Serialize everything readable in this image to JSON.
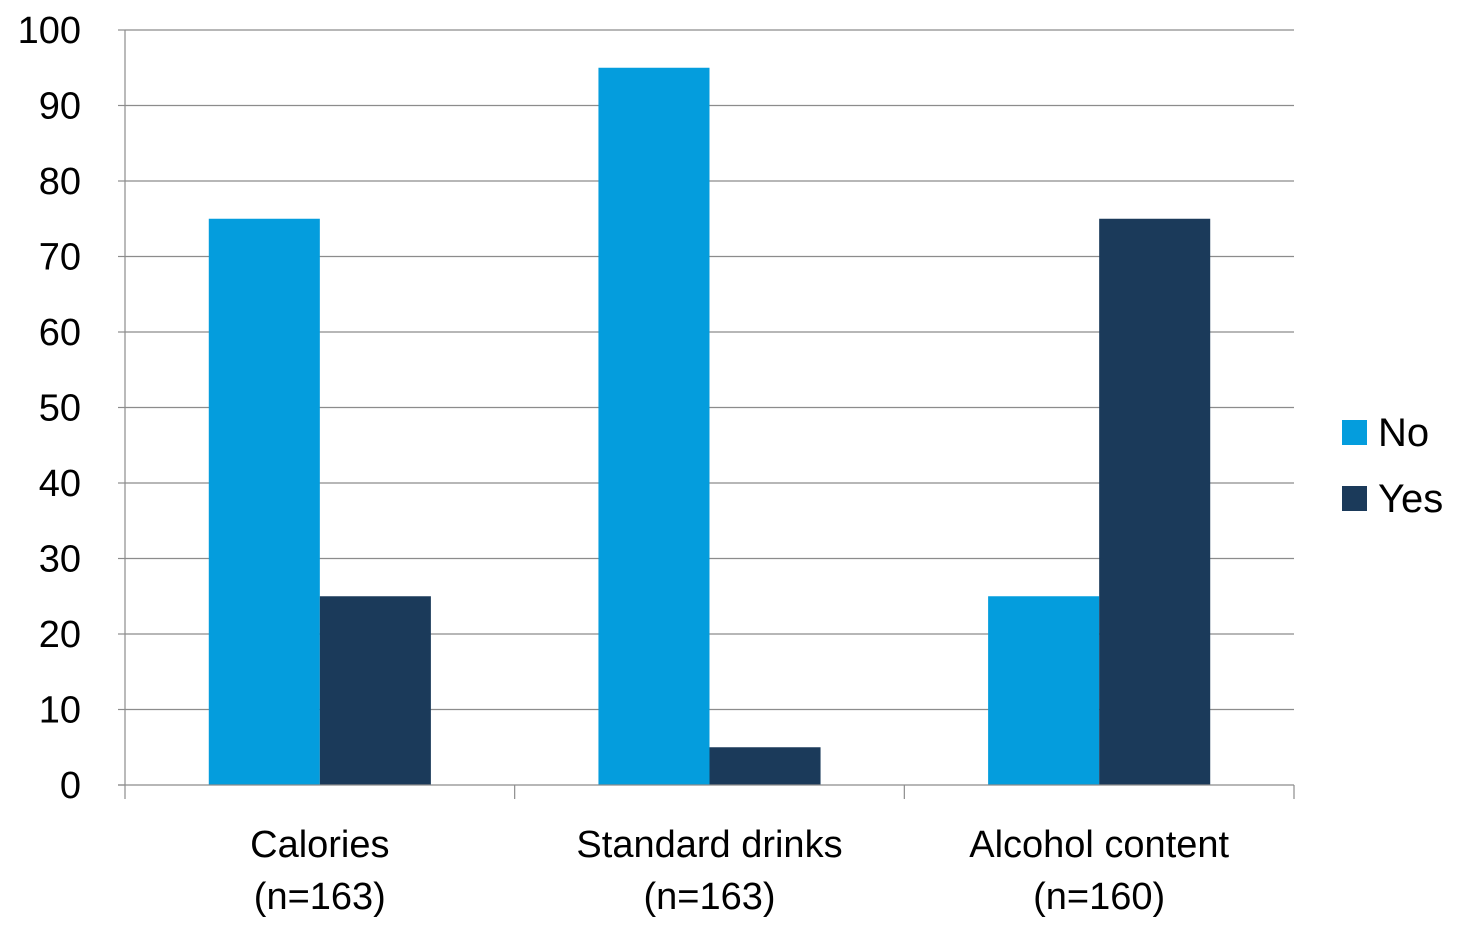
{
  "chart_data": {
    "type": "bar",
    "categories": [
      [
        "Calories",
        "(n=163)"
      ],
      [
        "Standard drinks",
        "(n=163)"
      ],
      [
        "Alcohol content",
        "(n=160)"
      ]
    ],
    "series": [
      {
        "name": "No",
        "values": [
          75,
          95,
          25
        ],
        "color": "#049ddd"
      },
      {
        "name": "Yes",
        "values": [
          25,
          5,
          75
        ],
        "color": "#1b3a5a"
      }
    ],
    "yticks": [
      0,
      10,
      20,
      30,
      40,
      50,
      60,
      70,
      80,
      90,
      100
    ],
    "ylim": [
      0,
      100
    ],
    "grid": true,
    "legend_position": "right"
  }
}
